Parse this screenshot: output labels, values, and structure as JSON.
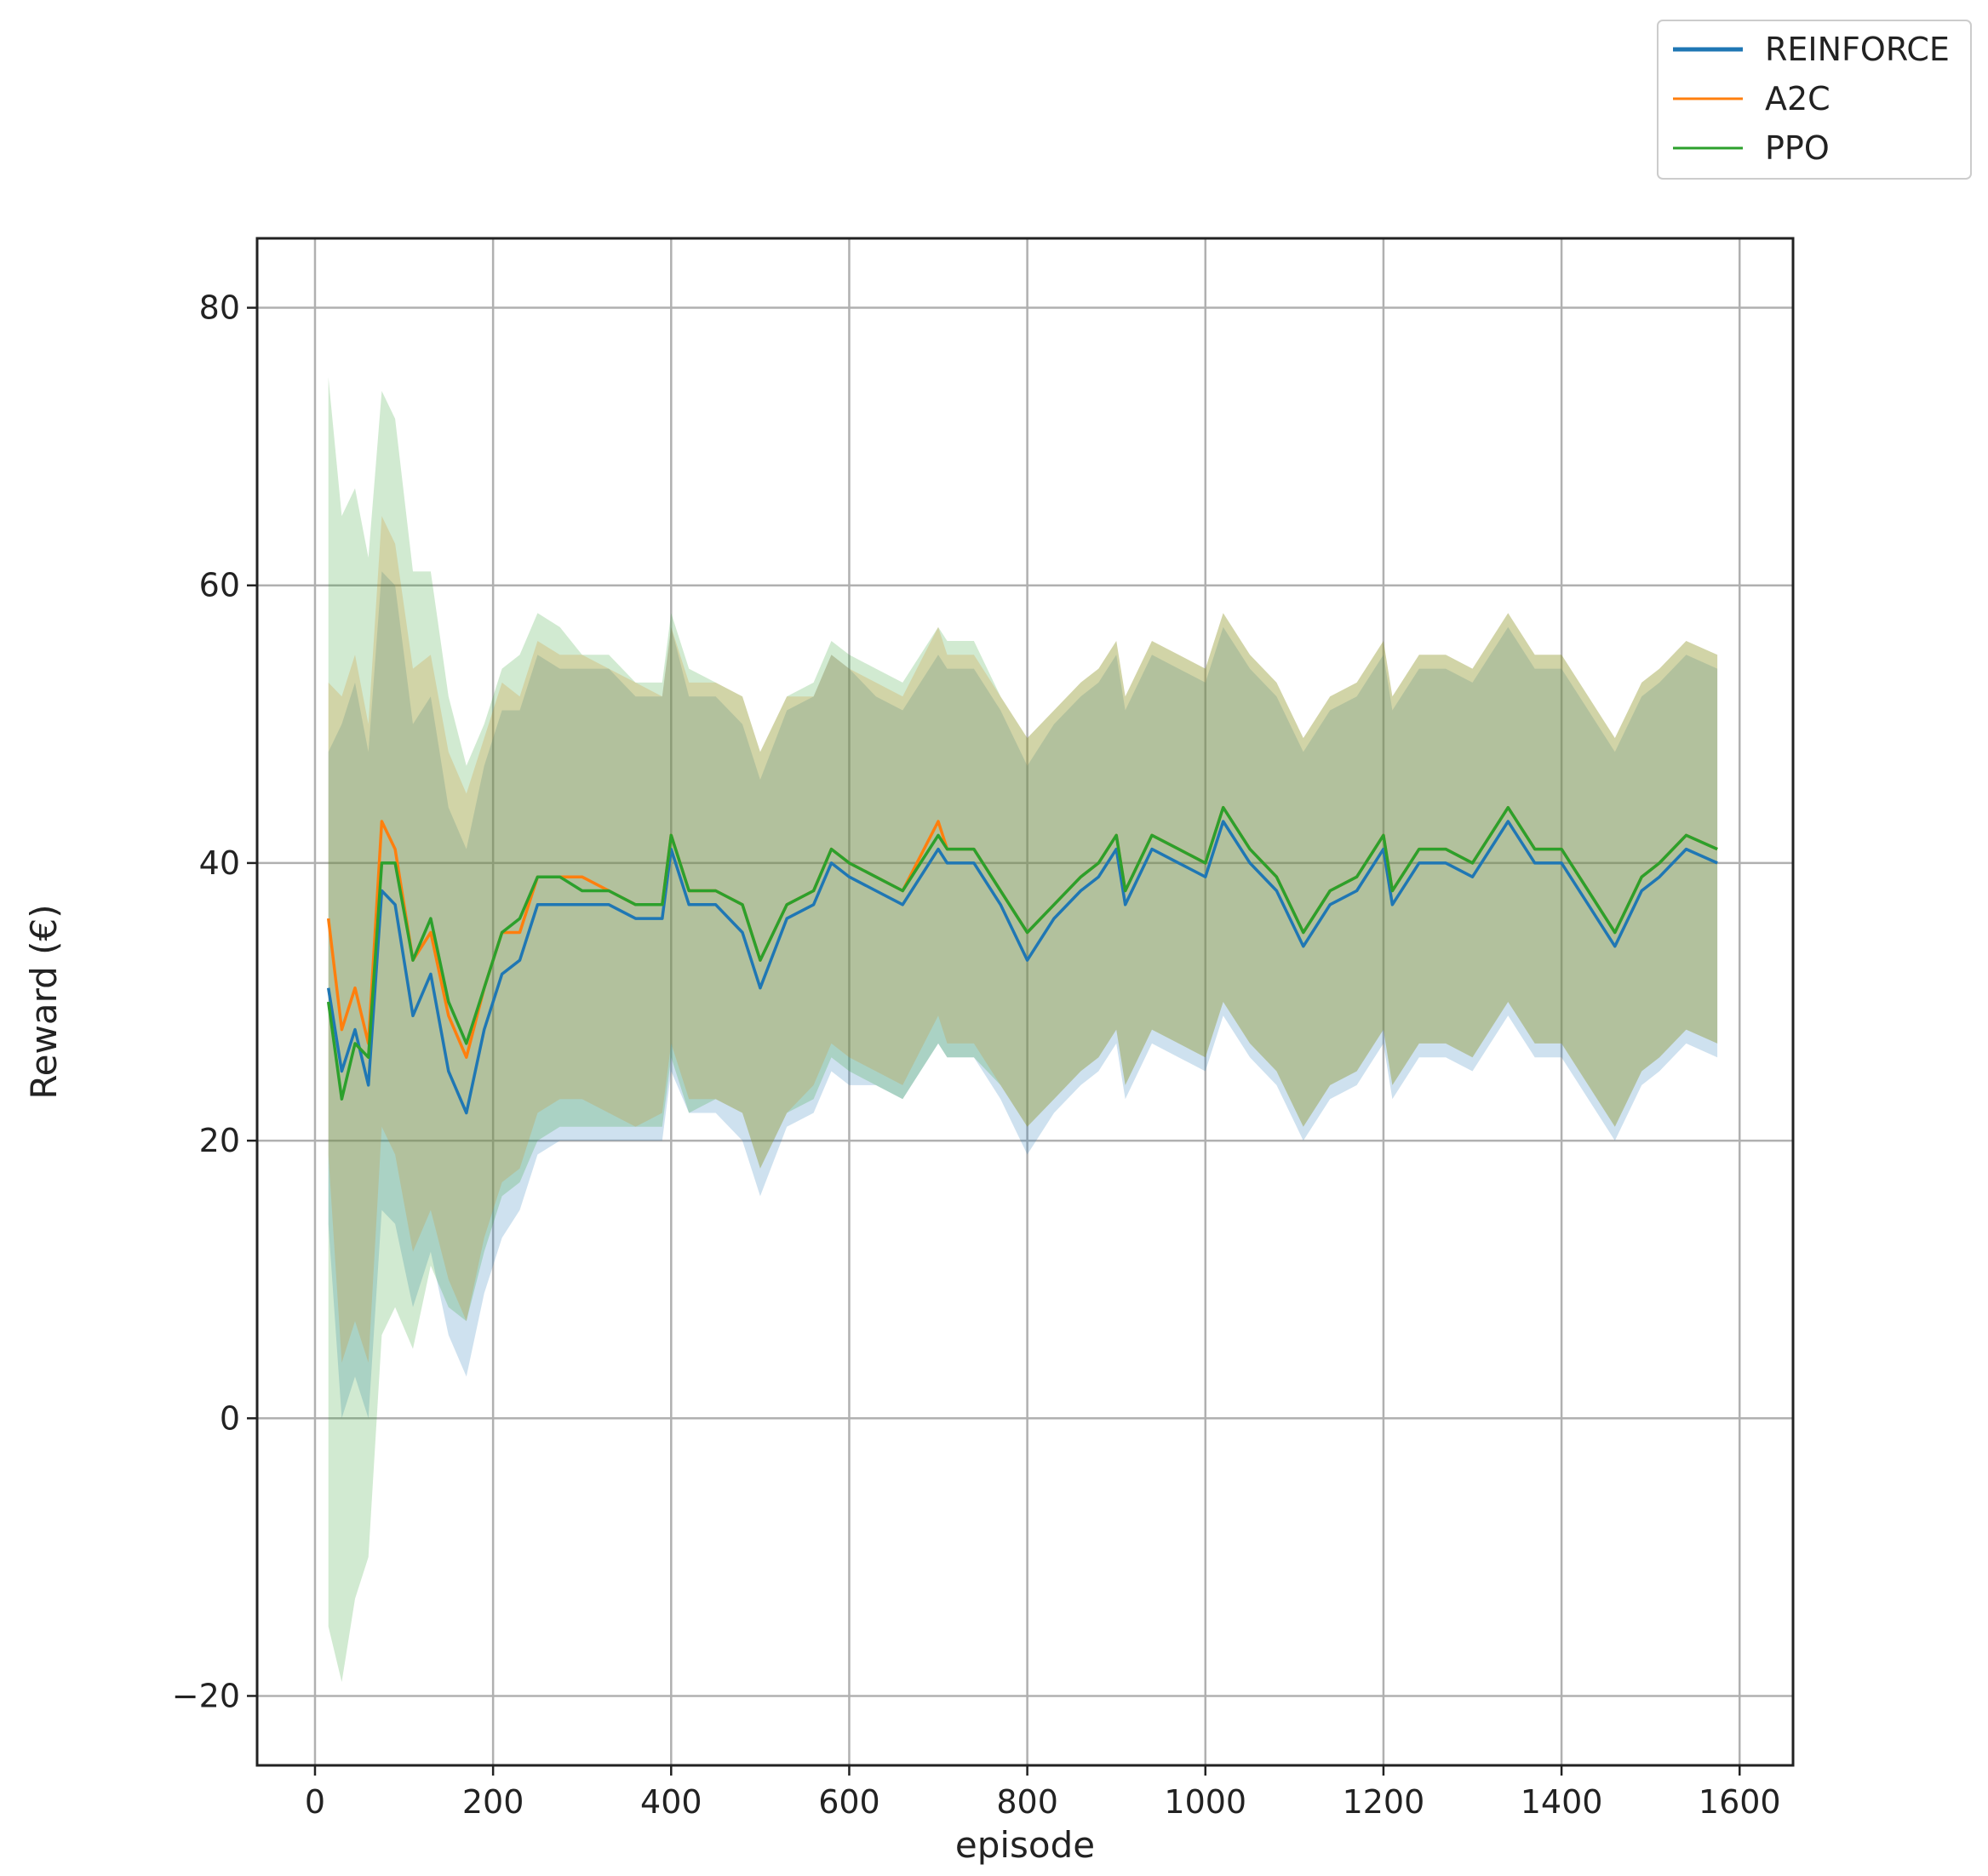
{
  "chart_data": {
    "type": "line",
    "title": "",
    "xlabel": "episode",
    "ylabel": "Reward (€)",
    "xlim": [
      -65,
      1660
    ],
    "ylim": [
      -25,
      85
    ],
    "xticks": [
      0,
      200,
      400,
      600,
      800,
      1000,
      1200,
      1400,
      1600
    ],
    "yticks": [
      -20,
      0,
      20,
      40,
      60,
      80
    ],
    "xtick_labels": [
      "0",
      "200",
      "400",
      "600",
      "800",
      "1000",
      "1200",
      "1400",
      "1600"
    ],
    "ytick_labels": [
      "−20",
      "0",
      "20",
      "40",
      "60",
      "80"
    ],
    "grid": true,
    "legend_position": "top-right, outside plot",
    "shaded_band": "mean ± std",
    "x": [
      15,
      30,
      45,
      60,
      75,
      90,
      110,
      130,
      150,
      170,
      190,
      210,
      230,
      250,
      275,
      300,
      330,
      360,
      390,
      400,
      420,
      450,
      480,
      500,
      530,
      560,
      580,
      600,
      630,
      660,
      700,
      710,
      740,
      770,
      800,
      830,
      860,
      880,
      900,
      910,
      940,
      970,
      1000,
      1020,
      1050,
      1080,
      1110,
      1140,
      1170,
      1200,
      1210,
      1240,
      1270,
      1300,
      1340,
      1370,
      1400,
      1430,
      1460,
      1490,
      1510,
      1540,
      1575
    ],
    "series": [
      {
        "name": "REINFORCE",
        "color": "#1f77b4",
        "mean": [
          31,
          25,
          28,
          24,
          38,
          37,
          29,
          32,
          25,
          22,
          28,
          32,
          33,
          37,
          37,
          37,
          37,
          36,
          36,
          41,
          37,
          37,
          35,
          31,
          36,
          37,
          40,
          39,
          38,
          37,
          41,
          40,
          40,
          37,
          33,
          36,
          38,
          39,
          41,
          37,
          41,
          40,
          39,
          43,
          40,
          38,
          34,
          37,
          38,
          41,
          37,
          40,
          40,
          39,
          43,
          40,
          40,
          37,
          34,
          38,
          39,
          41,
          40
        ],
        "std": [
          17,
          25,
          25,
          24,
          23,
          23,
          21,
          20,
          19,
          19,
          19,
          19,
          18,
          18,
          17,
          17,
          17,
          16,
          16,
          16,
          15,
          15,
          15,
          15,
          15,
          15,
          15,
          15,
          14,
          14,
          14,
          14,
          14,
          14,
          14,
          14,
          14,
          14,
          14,
          14,
          14,
          14,
          14,
          14,
          14,
          14,
          14,
          14,
          14,
          14,
          14,
          14,
          14,
          14,
          14,
          14,
          14,
          14,
          14,
          14,
          14,
          14,
          14
        ]
      },
      {
        "name": "A2C",
        "color": "#ff7f0e",
        "mean": [
          36,
          28,
          31,
          27,
          43,
          41,
          33,
          35,
          29,
          26,
          31,
          35,
          35,
          39,
          39,
          39,
          38,
          37,
          37,
          42,
          38,
          38,
          37,
          33,
          37,
          38,
          41,
          40,
          39,
          38,
          43,
          41,
          41,
          38,
          35,
          37,
          39,
          40,
          42,
          38,
          42,
          41,
          40,
          44,
          41,
          39,
          35,
          38,
          39,
          42,
          38,
          41,
          41,
          40,
          44,
          41,
          41,
          38,
          35,
          39,
          40,
          42,
          41
        ],
        "std": [
          17,
          24,
          24,
          23,
          22,
          22,
          21,
          20,
          19,
          19,
          18,
          18,
          17,
          17,
          16,
          16,
          16,
          16,
          15,
          15,
          15,
          15,
          15,
          15,
          15,
          14,
          14,
          14,
          14,
          14,
          14,
          14,
          14,
          14,
          14,
          14,
          14,
          14,
          14,
          14,
          14,
          14,
          14,
          14,
          14,
          14,
          14,
          14,
          14,
          14,
          14,
          14,
          14,
          14,
          14,
          14,
          14,
          14,
          14,
          14,
          14,
          14,
          14
        ]
      },
      {
        "name": "PPO",
        "color": "#2ca02c",
        "mean": [
          30,
          23,
          27,
          26,
          40,
          40,
          33,
          36,
          30,
          27,
          31,
          35,
          36,
          39,
          39,
          38,
          38,
          37,
          37,
          42,
          38,
          38,
          37,
          33,
          37,
          38,
          41,
          40,
          39,
          38,
          42,
          41,
          41,
          38,
          35,
          37,
          39,
          40,
          42,
          38,
          42,
          41,
          40,
          44,
          41,
          39,
          35,
          38,
          39,
          42,
          38,
          41,
          41,
          40,
          44,
          41,
          41,
          38,
          35,
          39,
          40,
          42,
          41
        ],
        "std": [
          45,
          42,
          40,
          36,
          34,
          32,
          28,
          25,
          22,
          20,
          19,
          19,
          19,
          19,
          18,
          17,
          17,
          16,
          16,
          16,
          16,
          15,
          15,
          15,
          15,
          15,
          15,
          15,
          15,
          15,
          15,
          15,
          15,
          14,
          14,
          14,
          14,
          14,
          14,
          14,
          14,
          14,
          14,
          14,
          14,
          14,
          14,
          14,
          14,
          14,
          14,
          14,
          14,
          14,
          14,
          14,
          14,
          14,
          14,
          14,
          14,
          14,
          14
        ]
      }
    ]
  }
}
